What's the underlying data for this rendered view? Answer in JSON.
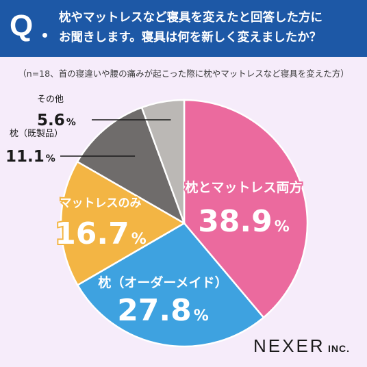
{
  "question": {
    "mark": "Q",
    "line1": "枕やマットレスなど寝具を変えたと回答した方に",
    "line2": "お聞きします。寝具は何を新しく変えましたか？"
  },
  "note": "（n=18、首の寝違いや腰の痛みが起こった際に枕やマットレスなど寝具を変えた方）",
  "logo": {
    "main": "NEXER",
    "suffix": "INC."
  },
  "colors": {
    "header": "#1d58a6",
    "background": "#f6ecfa",
    "both": "#eb6a9e",
    "pillow_custom": "#3ea2e0",
    "mattress_only": "#f3b544",
    "pillow_ready": "#6f6c6b",
    "other": "#bbb8b5"
  },
  "chart_data": {
    "type": "pie",
    "start": "12 o'clock",
    "direction": "clockwise",
    "unit": "%",
    "slices": [
      {
        "label": "枕とマットレス両方",
        "value": 38.9,
        "color": "#eb6a9e"
      },
      {
        "label": "枕（オーダーメイド）",
        "value": 27.8,
        "color": "#3ea2e0"
      },
      {
        "label": "マットレスのみ",
        "value": 16.7,
        "color": "#f3b544"
      },
      {
        "label": "枕（既製品）",
        "value": 11.1,
        "color": "#6f6c6b"
      },
      {
        "label": "その他",
        "value": 5.6,
        "color": "#bbb8b5"
      }
    ]
  }
}
